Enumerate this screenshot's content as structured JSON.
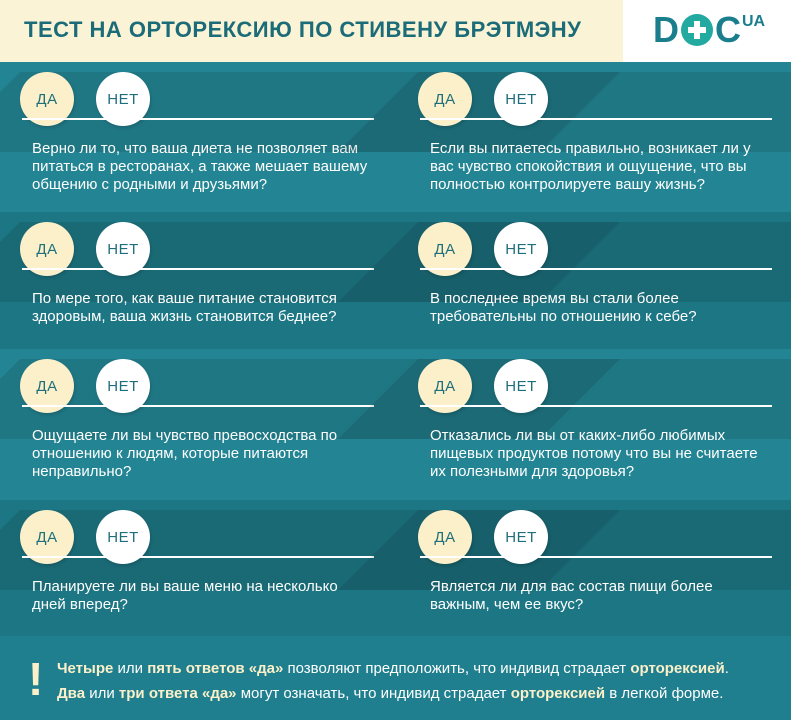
{
  "header": {
    "title": "ТЕСТ НА  ОРТОРЕКСИЮ ПО СТИВЕНУ БРЭТМЭНУ",
    "logo": {
      "main_left": "D",
      "main_right": "C",
      "sup": "UA",
      "icon": "medical-cross-icon"
    }
  },
  "answers": {
    "yes": "ДА",
    "no": "НЕТ"
  },
  "questions": [
    "Верно ли то, что ваша диета не позволяет вам питаться в ресторанах, а также мешает вашему общению с родными и друзьями?",
    "Если вы питаетесь правильно, возникает ли у вас чувство спокойствия и ощущение, что вы полностью контролируете вашу жизнь?",
    "По мере того, как ваше питание становится здоровым, ваша жизнь становится беднее?",
    "В последнее время вы стали более требовательны по отношению к себе?",
    "Ощущаете ли вы чувство превосходства по отношению к людям, которые питаются неправильно?",
    "Отказались ли вы от каких-либо любимых пищевых продуктов потому что вы не считаете их полезными для здоровья?",
    "Планируете ли вы ваше меню на несколько дней вперед?",
    "Является ли для вас состав пищи более важным, чем ее вкус?"
  ],
  "footer": {
    "icon": "exclamation-icon",
    "line1": {
      "w1": "Четыре",
      "t1": " или ",
      "w2": "пять ответов «да»",
      "t2": " позволяют предположить, что индивид страдает ",
      "w3": "орторексией",
      "t3": "."
    },
    "line2": {
      "w1": "Два",
      "t1": " или ",
      "w2": "три ответа «да»",
      "t2": " могут означать, что индивид страдает ",
      "w3": "орторексией",
      "t3": " в легкой форме."
    }
  }
}
